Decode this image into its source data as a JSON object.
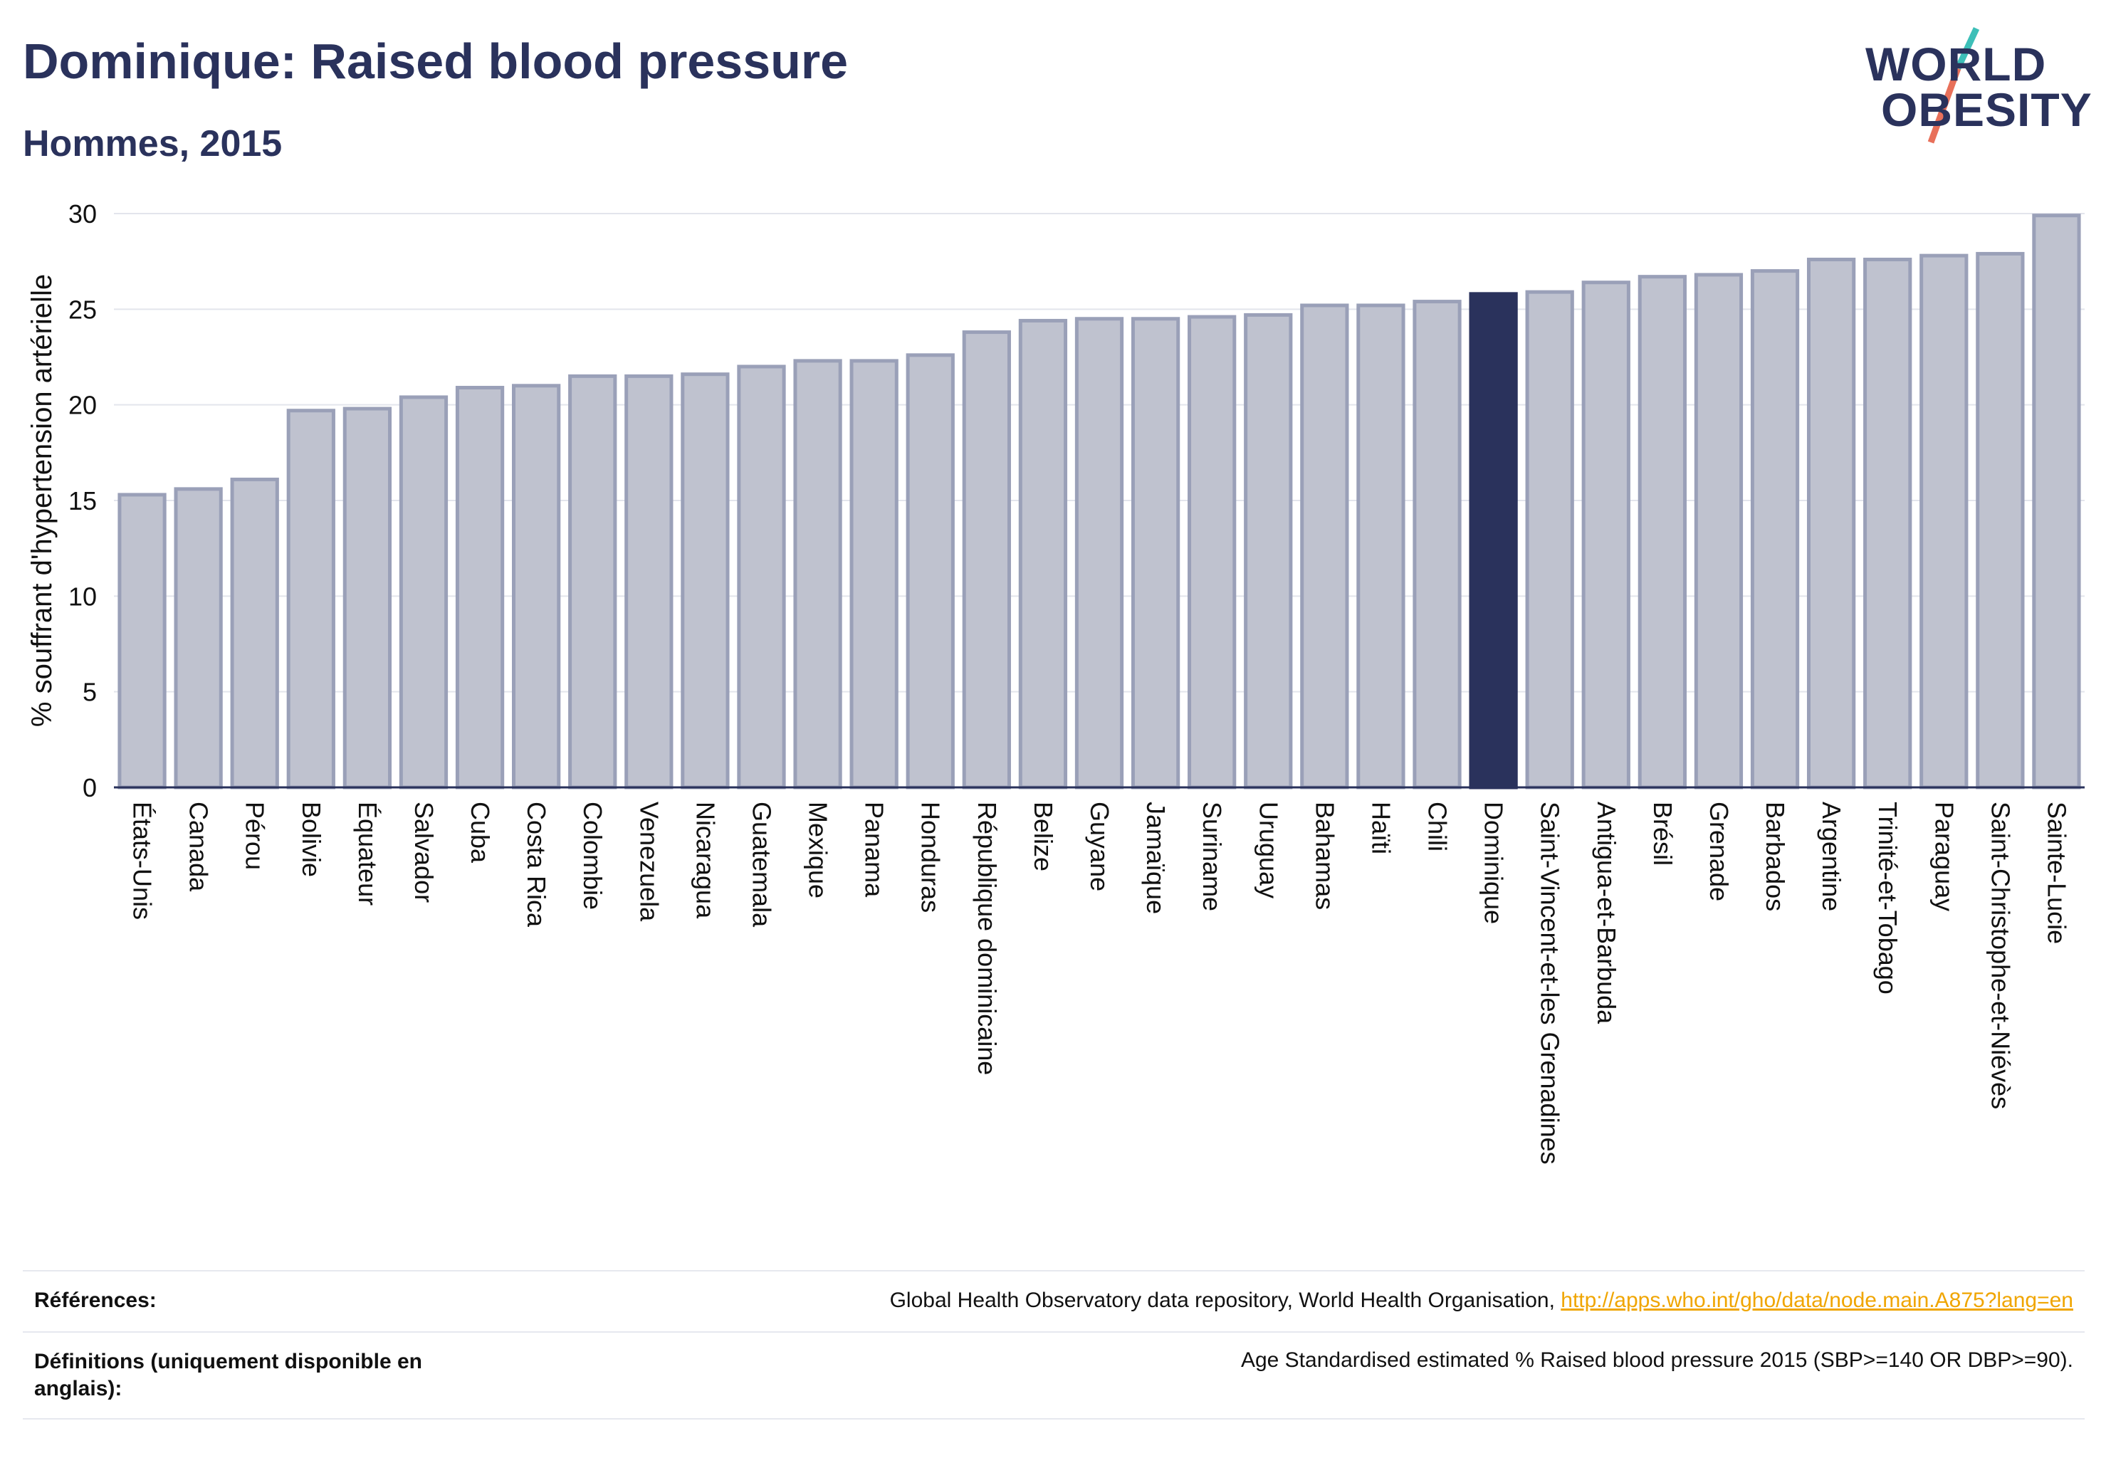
{
  "header": {
    "title": "Dominique: Raised blood pressure",
    "subtitle": "Hommes, 2015"
  },
  "logo": {
    "line1": "WORLD",
    "line2": "OBESITY",
    "colors": {
      "text": "#2a325c",
      "slash_top": "#3dbfb8",
      "slash_bottom": "#e8705a"
    }
  },
  "chart_data": {
    "type": "bar",
    "ylabel": "% souffrant d'hypertension artérielle",
    "ylim": [
      0,
      30
    ],
    "yticks": [
      0,
      5,
      10,
      15,
      20,
      25,
      30
    ],
    "grid": true,
    "highlight": "Dominique",
    "colors": {
      "bar": "#bfc2cf",
      "bar_border": "#9aa0b8",
      "highlight": "#2a325c"
    },
    "categories": [
      "États-Unis",
      "Canada",
      "Pérou",
      "Bolivie",
      "Équateur",
      "Salvador",
      "Cuba",
      "Costa Rica",
      "Colombie",
      "Venezuela",
      "Nicaragua",
      "Guatemala",
      "Mexique",
      "Panama",
      "Honduras",
      "République dominicaine",
      "Belize",
      "Guyane",
      "Jamaïque",
      "Suriname",
      "Uruguay",
      "Bahamas",
      "Haïti",
      "Chili",
      "Dominique",
      "Saint-Vincent-et-les Grenadines",
      "Antigua-et-Barbuda",
      "Brésil",
      "Grenade",
      "Barbados",
      "Argentine",
      "Trinité-et-Tobago",
      "Paraguay",
      "Saint-Christophe-et-Niévès",
      "Sainte-Lucie"
    ],
    "values": [
      15.3,
      15.6,
      16.1,
      19.7,
      19.8,
      20.4,
      20.9,
      21.0,
      21.5,
      21.5,
      21.6,
      22.0,
      22.3,
      22.3,
      22.6,
      23.8,
      24.4,
      24.5,
      24.5,
      24.6,
      24.7,
      25.2,
      25.2,
      25.4,
      25.8,
      25.9,
      26.4,
      26.7,
      26.8,
      27.0,
      27.6,
      27.6,
      27.8,
      27.9,
      29.9
    ]
  },
  "references": {
    "label": "Références:",
    "text": "Global Health Observatory data repository, World Health Organisation, ",
    "link": "http://apps.who.int/gho/data/node.main.A875?lang=en"
  },
  "definitions": {
    "label": "Définitions (uniquement disponible en anglais):",
    "text": "Age Standardised estimated % Raised blood pressure 2015 (SBP>=140 OR DBP>=90)."
  }
}
